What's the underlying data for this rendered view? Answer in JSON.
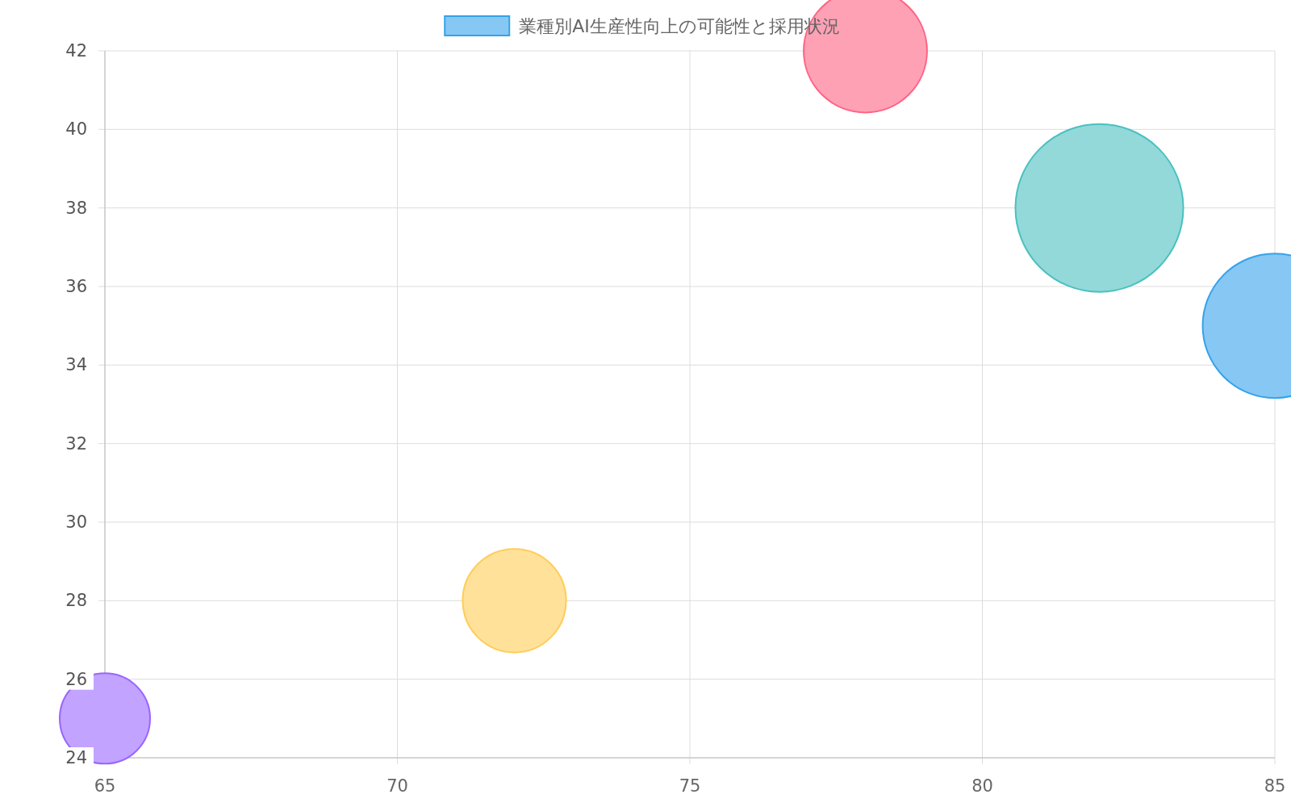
{
  "chart_data": {
    "type": "bubble",
    "x": [
      65,
      72,
      78,
      82,
      85
    ],
    "series": [
      {
        "name": "業種別AI生産性向上の可能性と採用状況",
        "colors": [
          "#c2a3ff",
          "#ffe19a",
          "#ffa1b5",
          "#93d9d9",
          "#86c7f3"
        ],
        "values": [
          25,
          28,
          42,
          38,
          35
        ],
        "sizes": [
          0.29,
          0.38,
          0.54,
          1,
          0.74
        ]
      }
    ],
    "xlim": [
      65,
      85
    ],
    "ylim": [
      24,
      42
    ],
    "xticks": [
      65,
      70,
      75,
      80,
      85
    ],
    "yticks": [
      24,
      26,
      28,
      30,
      32,
      34,
      36,
      38,
      40,
      42
    ],
    "grid": true,
    "legend": "top"
  }
}
